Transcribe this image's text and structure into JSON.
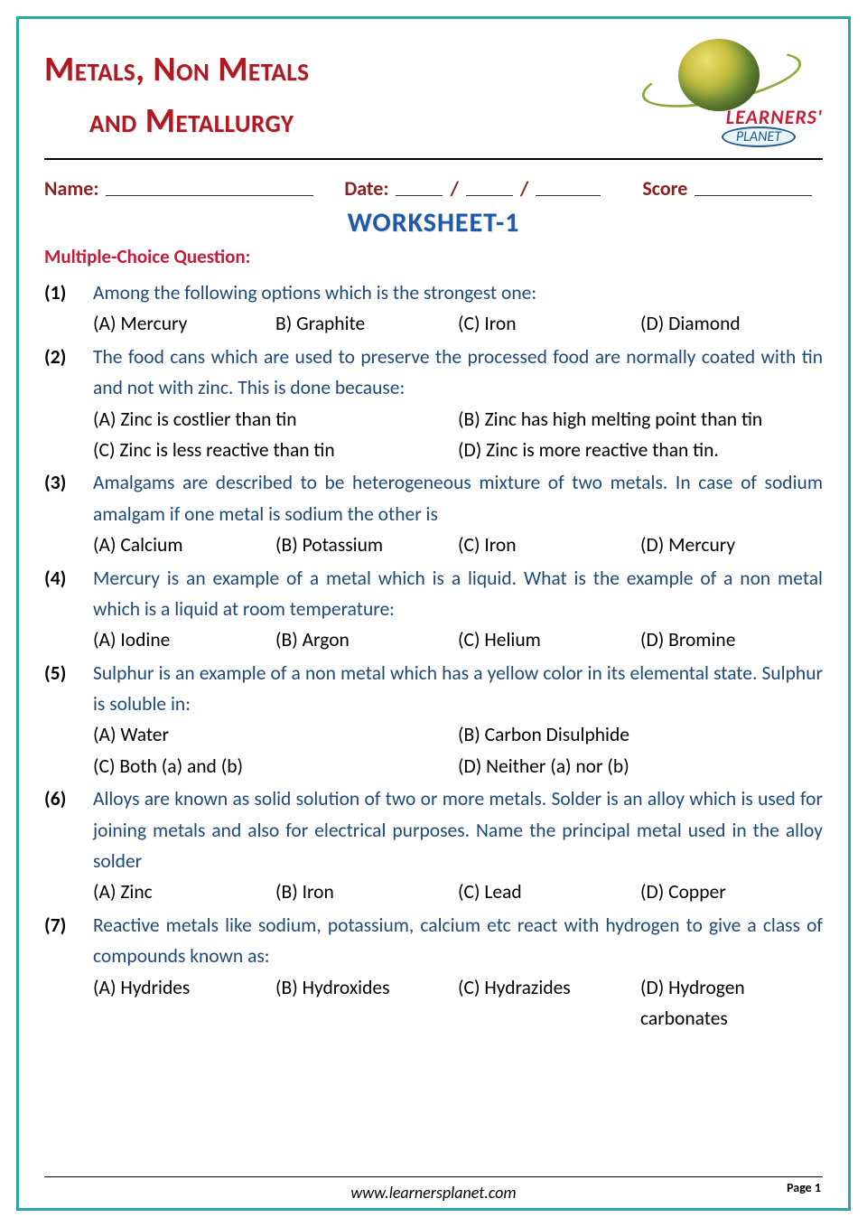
{
  "title": {
    "line1": "Metals, Non Metals",
    "line2": "and Metallurgy"
  },
  "logo": {
    "brand": "LEARNERS'",
    "sub": "PLANET"
  },
  "fields": {
    "name_label": "Name:",
    "date_label": "Date:",
    "score_label": "Score"
  },
  "worksheet_label": "WORKSHEET-1",
  "section_label": "Multiple-Choice Question:",
  "questions": [
    {
      "num": "(1)",
      "text": "Among the following options which is the strongest one:",
      "opts": [
        {
          "t": "(A) Mercury",
          "w": "q"
        },
        {
          "t": "B) Graphite",
          "w": "q"
        },
        {
          "t": "(C) Iron",
          "w": "q"
        },
        {
          "t": "(D) Diamond",
          "w": "q"
        }
      ]
    },
    {
      "num": "(2)",
      "text": "The food cans which are used to preserve the processed food are normally coated with tin and not with zinc. This is done because:",
      "opts": [
        {
          "t": "(A) Zinc is costlier than tin",
          "w": "h"
        },
        {
          "t": "(B) Zinc has high melting point than tin",
          "w": "h"
        },
        {
          "t": "(C) Zinc is less reactive than tin",
          "w": "h"
        },
        {
          "t": "(D) Zinc is more reactive than tin.",
          "w": "h"
        }
      ]
    },
    {
      "num": "(3)",
      "text": "Amalgams are described to be heterogeneous mixture of two metals. In case of sodium  amalgam if one metal is sodium the other is",
      "opts": [
        {
          "t": "(A) Calcium",
          "w": "q"
        },
        {
          "t": "(B) Potassium",
          "w": "q"
        },
        {
          "t": "(C) Iron",
          "w": "q"
        },
        {
          "t": "(D) Mercury",
          "w": "q"
        }
      ]
    },
    {
      "num": "(4)",
      "text": "Mercury is an example of a metal which is a liquid. What is the example of a non metal which is a liquid at room temperature:",
      "opts": [
        {
          "t": "(A) Iodine",
          "w": "q"
        },
        {
          "t": "(B) Argon",
          "w": "q"
        },
        {
          "t": "(C) Helium",
          "w": "q"
        },
        {
          "t": "(D) Bromine",
          "w": "q"
        }
      ]
    },
    {
      "num": "(5)",
      "text": "Sulphur is an example of a non metal which has a yellow color in its elemental state. Sulphur is soluble in:",
      "opts": [
        {
          "t": "(A) Water",
          "w": "h"
        },
        {
          "t": "(B) Carbon Disulphide",
          "w": "h"
        },
        {
          "t": "(C) Both (a) and (b)",
          "w": "h"
        },
        {
          "t": "(D) Neither (a) nor (b)",
          "w": "h"
        }
      ]
    },
    {
      "num": "(6)",
      "text": "Alloys are known as solid solution of two or more metals. Solder is an alloy which is used for joining metals and also for electrical purposes. Name the principal metal used in the alloy solder",
      "opts": [
        {
          "t": "(A) Zinc",
          "w": "q"
        },
        {
          "t": "(B) Iron",
          "w": "q"
        },
        {
          "t": "(C) Lead",
          "w": "q"
        },
        {
          "t": "(D) Copper",
          "w": "q"
        }
      ]
    },
    {
      "num": "(7)",
      "text": "Reactive metals like sodium, potassium, calcium etc react with hydrogen to give a class of compounds known as:",
      "opts": [
        {
          "t": "(A) Hydrides",
          "w": "q"
        },
        {
          "t": "(B) Hydroxides",
          "w": "q"
        },
        {
          "t": "(C) Hydrazides",
          "w": "q"
        },
        {
          "t": "(D) Hydrogen carbonates",
          "w": "q"
        }
      ]
    }
  ],
  "footer": {
    "page": "Page 1",
    "url": "www.learnersplanet.com"
  },
  "colors": {
    "frame_border": "#2aa8a8",
    "title_red": "#b01822",
    "field_label": "#8b2020",
    "worksheet_blue": "#1e5aa8",
    "section_red": "#c41e3a",
    "question_blue": "#1e4a7a",
    "option_black": "#000000"
  }
}
